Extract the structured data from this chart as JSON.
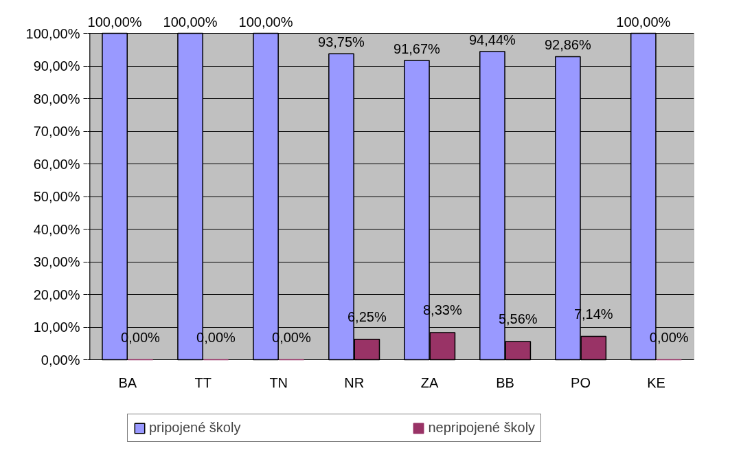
{
  "chart_data": {
    "type": "bar",
    "categories": [
      "BA",
      "TT",
      "TN",
      "NR",
      "ZA",
      "BB",
      "PO",
      "KE"
    ],
    "series": [
      {
        "name": "pripojené školy",
        "color": "#9999ff",
        "values": [
          100,
          100,
          100,
          93.75,
          91.67,
          94.44,
          92.86,
          100
        ],
        "value_labels": [
          "100,00%",
          "100,00%",
          "100,00%",
          "93,75%",
          "91,67%",
          "94,44%",
          "92,86%",
          "100,00%"
        ]
      },
      {
        "name": "nepripojené školy",
        "color": "#993366",
        "values": [
          0,
          0,
          0,
          6.25,
          8.33,
          5.56,
          7.14,
          0
        ],
        "value_labels": [
          "0,00%",
          "0,00%",
          "0,00%",
          "6,25%",
          "8,33%",
          "5,56%",
          "7,14%",
          "0,00%"
        ]
      }
    ],
    "ylim": [
      0,
      100
    ],
    "yticks": [
      {
        "value": 0,
        "label": "0,00%"
      },
      {
        "value": 10,
        "label": "10,00%"
      },
      {
        "value": 20,
        "label": "20,00%"
      },
      {
        "value": 30,
        "label": "30,00%"
      },
      {
        "value": 40,
        "label": "40,00%"
      },
      {
        "value": 50,
        "label": "50,00%"
      },
      {
        "value": 60,
        "label": "60,00%"
      },
      {
        "value": 70,
        "label": "70,00%"
      },
      {
        "value": 80,
        "label": "80,00%"
      },
      {
        "value": 90,
        "label": "90,00%"
      },
      {
        "value": 100,
        "label": "100,00%"
      }
    ],
    "grid": "y",
    "legend": "bottom"
  }
}
